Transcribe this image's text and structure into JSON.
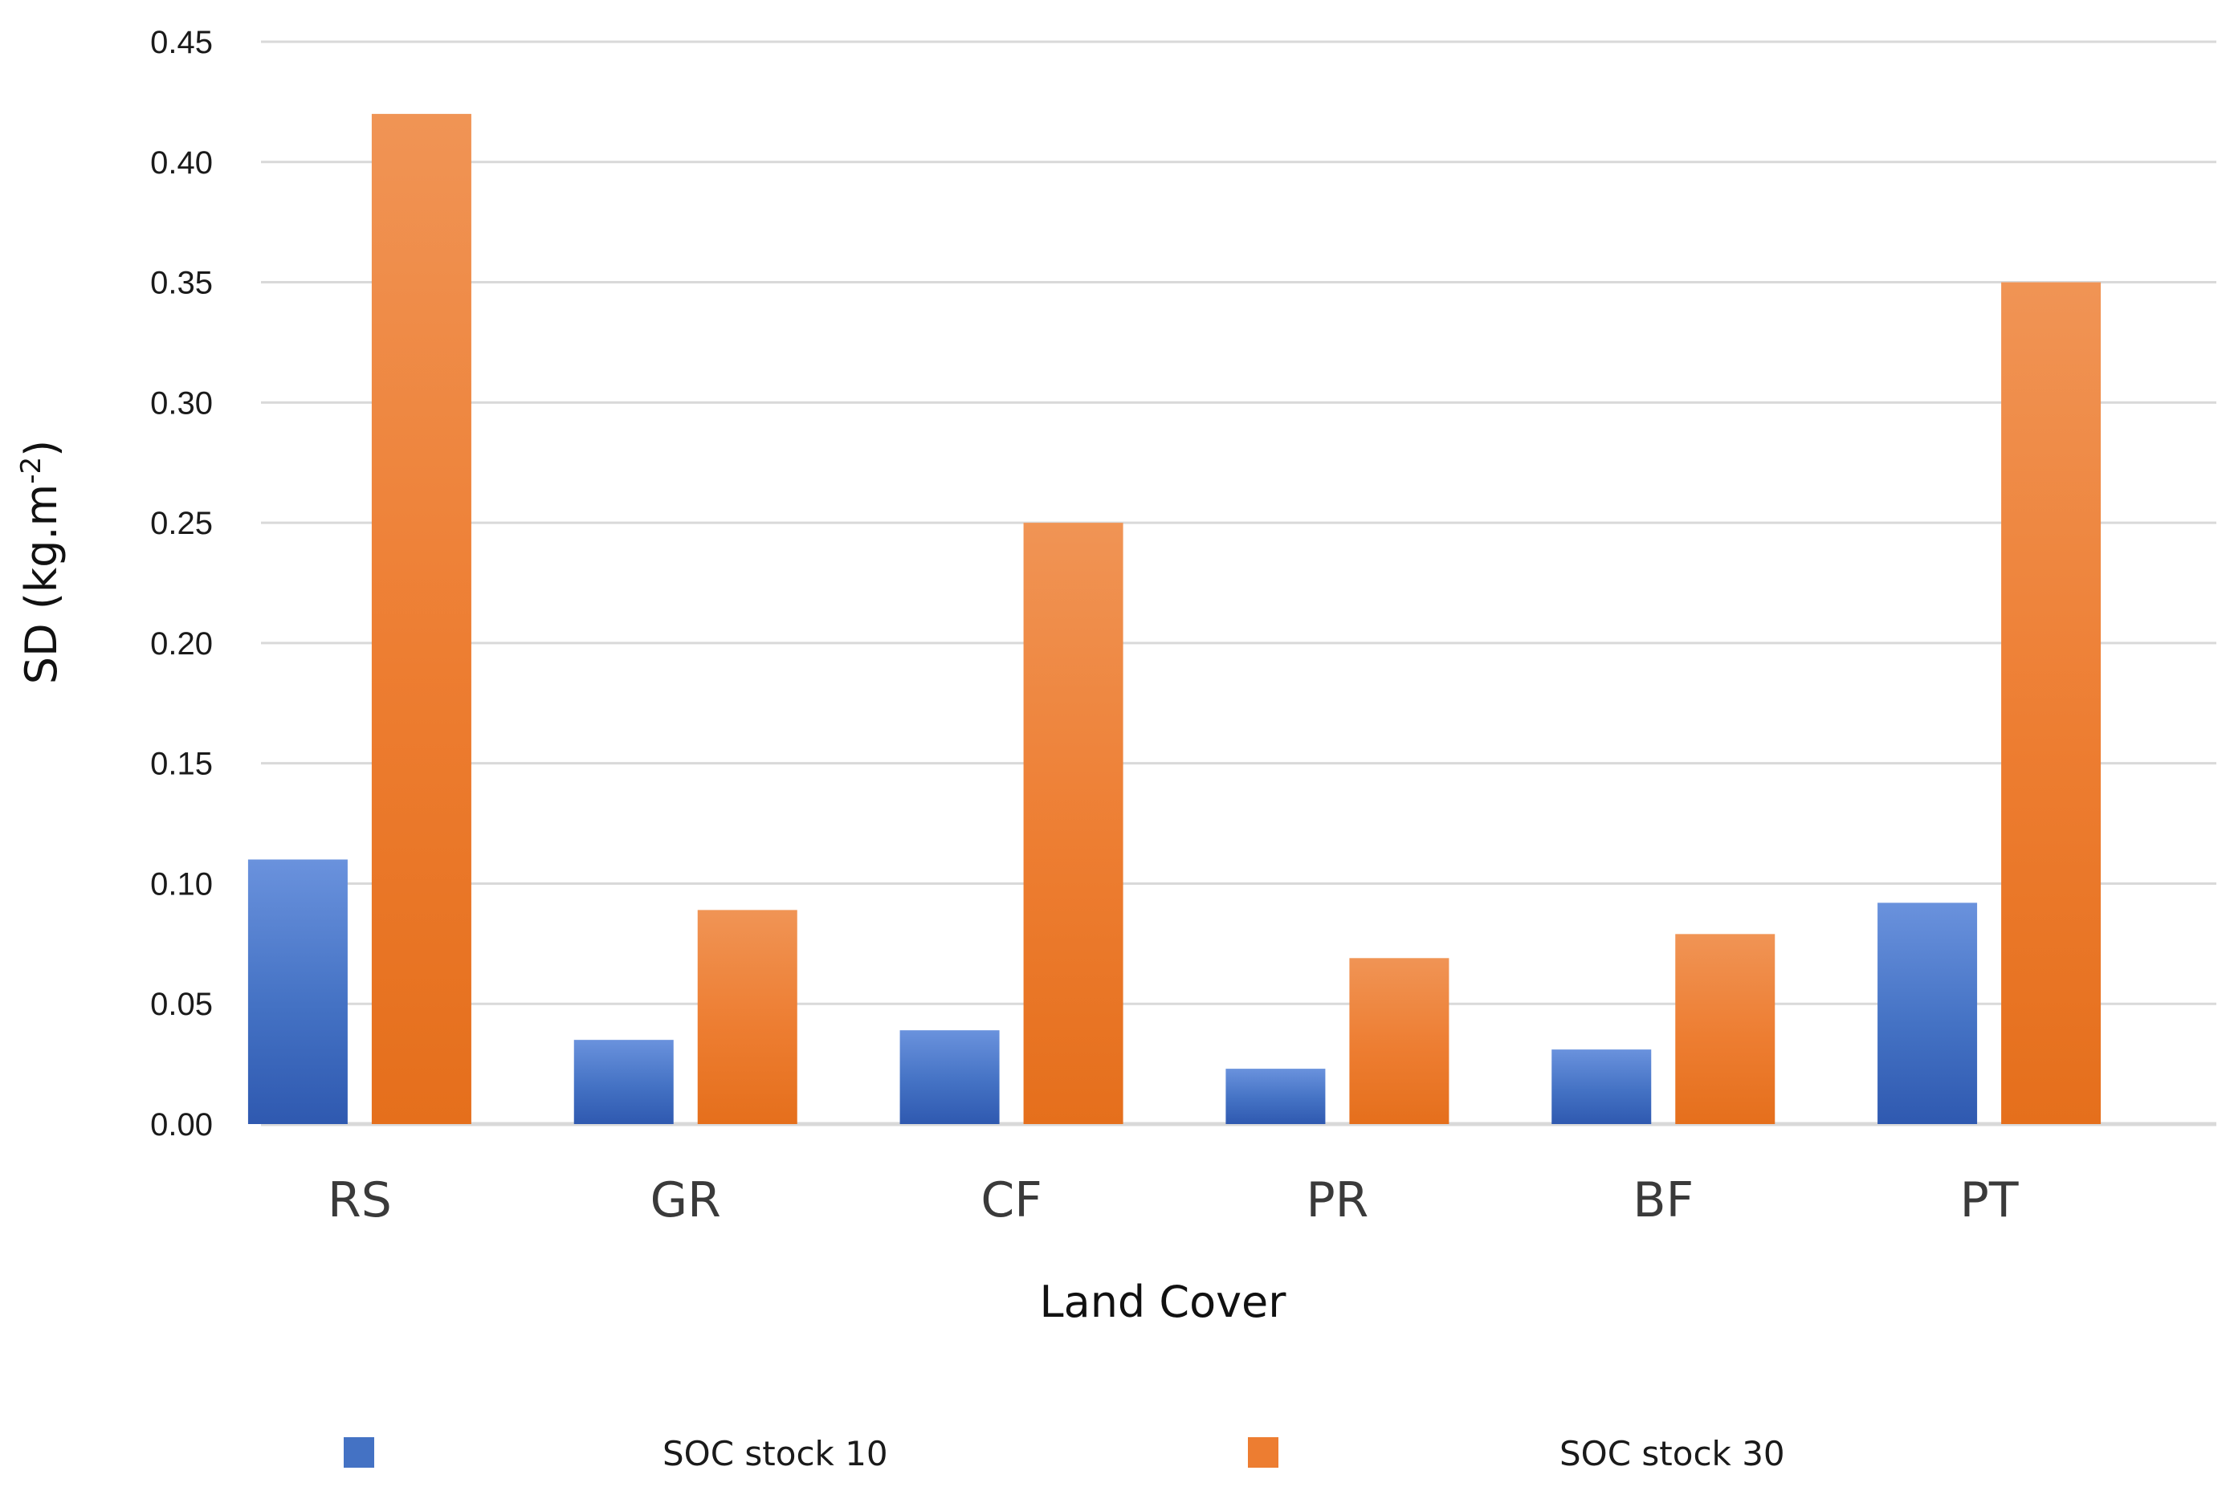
{
  "chart_data": {
    "type": "bar",
    "title": "",
    "xlabel": "Land Cover",
    "ylabel": "SD (kg.m",
    "ylabel_superscript": "-2",
    "ylabel_close": ")",
    "categories": [
      "RS",
      "GR",
      "CF",
      "PR",
      "BF",
      "PT"
    ],
    "series": [
      {
        "name": "SOC stock 10",
        "color": "#4472C4",
        "color_light": "#6A92DD",
        "color_dark": "#2F59B0",
        "values": [
          0.11,
          0.035,
          0.039,
          0.023,
          0.031,
          0.092
        ]
      },
      {
        "name": "SOC stock 30",
        "color": "#ED7D31",
        "color_light": "#F09455",
        "color_dark": "#E56F1C",
        "values": [
          0.42,
          0.089,
          0.25,
          0.069,
          0.079,
          0.35
        ]
      }
    ],
    "ylim": [
      0,
      0.45
    ],
    "yticks": [
      "0.00",
      "0.05",
      "0.10",
      "0.15",
      "0.20",
      "0.25",
      "0.30",
      "0.35",
      "0.40",
      "0.45"
    ],
    "grid": true,
    "legend_position": "bottom",
    "gridline_color": "#D9D9D9"
  }
}
